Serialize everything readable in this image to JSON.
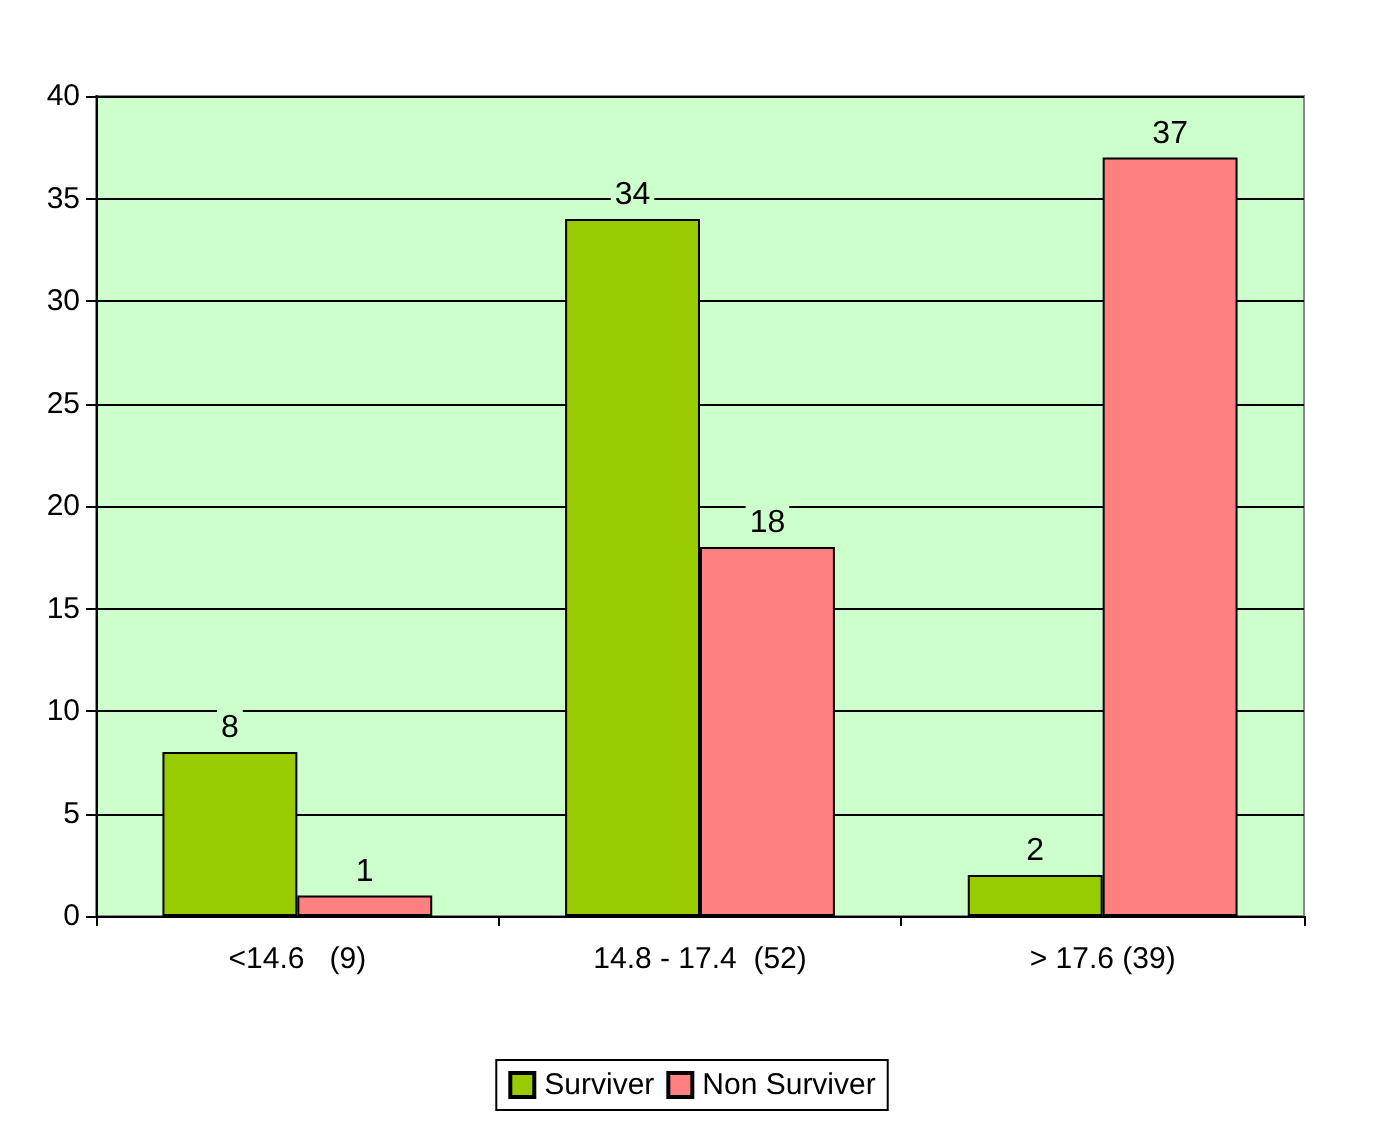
{
  "chart_data": {
    "type": "bar",
    "categories": [
      "<14.6   (9)",
      "14.8 - 17.4  (52)",
      "> 17.6 (39)"
    ],
    "series": [
      {
        "name": "Surviver",
        "color": "#99cc00",
        "values": [
          8,
          34,
          2
        ]
      },
      {
        "name": "Non Surviver",
        "color": "#ff8080",
        "values": [
          1,
          18,
          37
        ]
      }
    ],
    "ylim": [
      0,
      40
    ],
    "yticks": [
      0,
      5,
      10,
      15,
      20,
      25,
      30,
      35,
      40
    ],
    "grid": "y",
    "legend": "bottom",
    "data_labels": true
  }
}
